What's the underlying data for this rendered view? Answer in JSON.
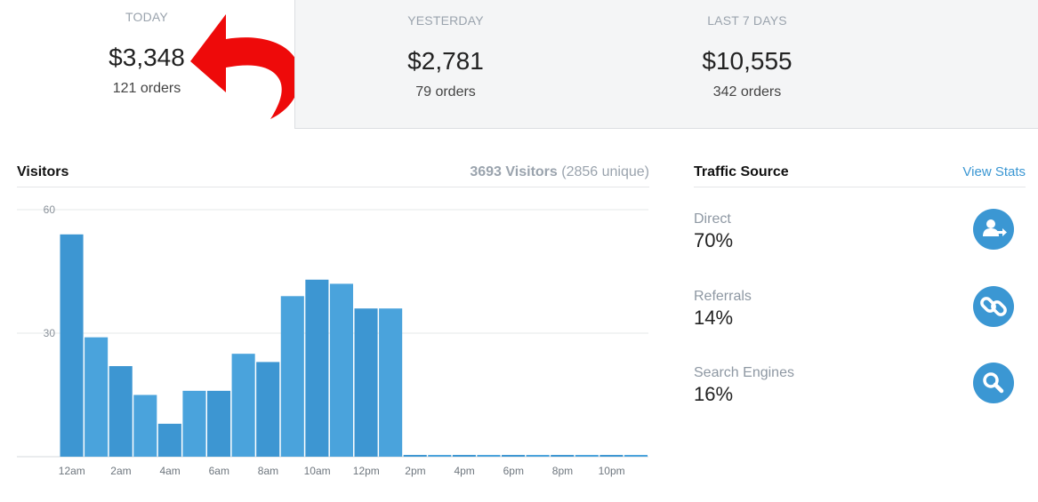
{
  "stats": {
    "today": {
      "label": "TODAY",
      "amount": "$3,348",
      "orders": "121 orders"
    },
    "yesterday": {
      "label": "YESTERDAY",
      "amount": "$2,781",
      "orders": "79 orders"
    },
    "last7": {
      "label": "LAST 7 DAYS",
      "amount": "$10,555",
      "orders": "342 orders"
    }
  },
  "visitors": {
    "title": "Visitors",
    "total": "3693 Visitors",
    "unique": "(2856 unique)"
  },
  "traffic": {
    "title": "Traffic Source",
    "link": "View Stats",
    "sources": [
      {
        "label": "Direct",
        "value": "70%",
        "icon": "user-arrow-icon"
      },
      {
        "label": "Referrals",
        "value": "14%",
        "icon": "link-icon"
      },
      {
        "label": "Search Engines",
        "value": "16%",
        "icon": "search-icon"
      }
    ]
  },
  "chart_data": {
    "type": "bar",
    "title": "",
    "xlabel": "",
    "ylabel": "",
    "ylim": [
      0,
      60
    ],
    "yticks": [
      30,
      60
    ],
    "x_tick_labels": [
      "12am",
      "2am",
      "4am",
      "6am",
      "8am",
      "10am",
      "12pm",
      "2pm",
      "4pm",
      "6pm",
      "8pm",
      "10pm"
    ],
    "categories": [
      "0",
      "1",
      "2",
      "3",
      "4",
      "5",
      "6",
      "7",
      "8",
      "9",
      "10",
      "11",
      "12",
      "13",
      "14",
      "15",
      "16",
      "17",
      "18",
      "19",
      "20",
      "21",
      "22",
      "23"
    ],
    "values": [
      54,
      29,
      22,
      15,
      8,
      16,
      16,
      25,
      23,
      39,
      43,
      42,
      36,
      36,
      0,
      0,
      0,
      0,
      0,
      0,
      0,
      0,
      0,
      0
    ],
    "bar_color": "#3b97d3"
  }
}
